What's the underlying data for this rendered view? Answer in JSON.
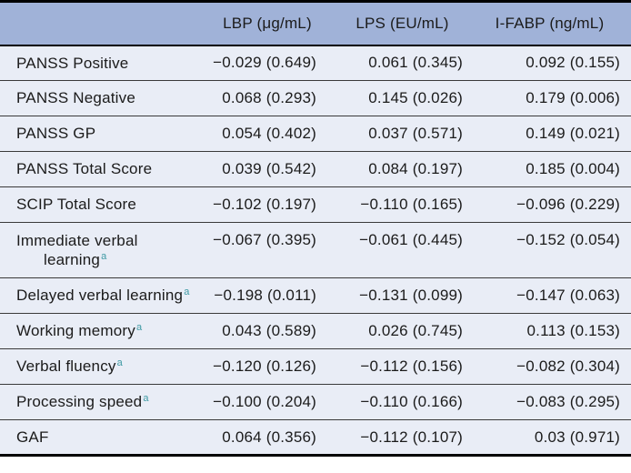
{
  "table": {
    "columns": [
      "",
      "LBP (μg/mL)",
      "LPS (EU/mL)",
      "I-FABP (ng/mL)"
    ],
    "rows": [
      {
        "label_lines": [
          "PANSS Positive"
        ],
        "sup": "",
        "values": [
          "−0.029 (0.649)",
          "0.061 (0.345)",
          "0.092 (0.155)"
        ]
      },
      {
        "label_lines": [
          "PANSS Negative"
        ],
        "sup": "",
        "values": [
          "0.068 (0.293)",
          "0.145 (0.026)",
          "0.179 (0.006)"
        ]
      },
      {
        "label_lines": [
          "PANSS GP"
        ],
        "sup": "",
        "values": [
          "0.054 (0.402)",
          "0.037 (0.571)",
          "0.149 (0.021)"
        ]
      },
      {
        "label_lines": [
          "PANSS Total Score"
        ],
        "sup": "",
        "values": [
          "0.039 (0.542)",
          "0.084 (0.197)",
          "0.185 (0.004)"
        ]
      },
      {
        "label_lines": [
          "SCIP Total Score"
        ],
        "sup": "",
        "values": [
          "−0.102 (0.197)",
          "−0.110 (0.165)",
          "−0.096 (0.229)"
        ]
      },
      {
        "label_lines": [
          "Immediate verbal",
          "learning"
        ],
        "sup": "a",
        "values": [
          "−0.067 (0.395)",
          "−0.061 (0.445)",
          "−0.152 (0.054)"
        ]
      },
      {
        "label_lines": [
          "Delayed verbal learning"
        ],
        "sup": "a",
        "values": [
          "−0.198 (0.011)",
          "−0.131 (0.099)",
          "−0.147 (0.063)"
        ]
      },
      {
        "label_lines": [
          "Working memory"
        ],
        "sup": "a",
        "values": [
          "0.043 (0.589)",
          "0.026 (0.745)",
          "0.113 (0.153)"
        ]
      },
      {
        "label_lines": [
          "Verbal fluency"
        ],
        "sup": "a",
        "values": [
          "−0.120 (0.126)",
          "−0.112 (0.156)",
          "−0.082 (0.304)"
        ]
      },
      {
        "label_lines": [
          "Processing speed"
        ],
        "sup": "a",
        "values": [
          "−0.100 (0.204)",
          "−0.110 (0.166)",
          "−0.083 (0.295)"
        ]
      },
      {
        "label_lines": [
          "GAF"
        ],
        "sup": "",
        "values": [
          "0.064 (0.356)",
          "−0.112 (0.107)",
          "0.03 (0.971)"
        ]
      }
    ],
    "colors": {
      "frame": "#000000",
      "rule": "#3a3a3a",
      "header_bg": "#a0b2d8",
      "row_bg": "#e9edf6",
      "text": "#1b1b1b",
      "footnote_marker": "#3f9aa4"
    }
  }
}
